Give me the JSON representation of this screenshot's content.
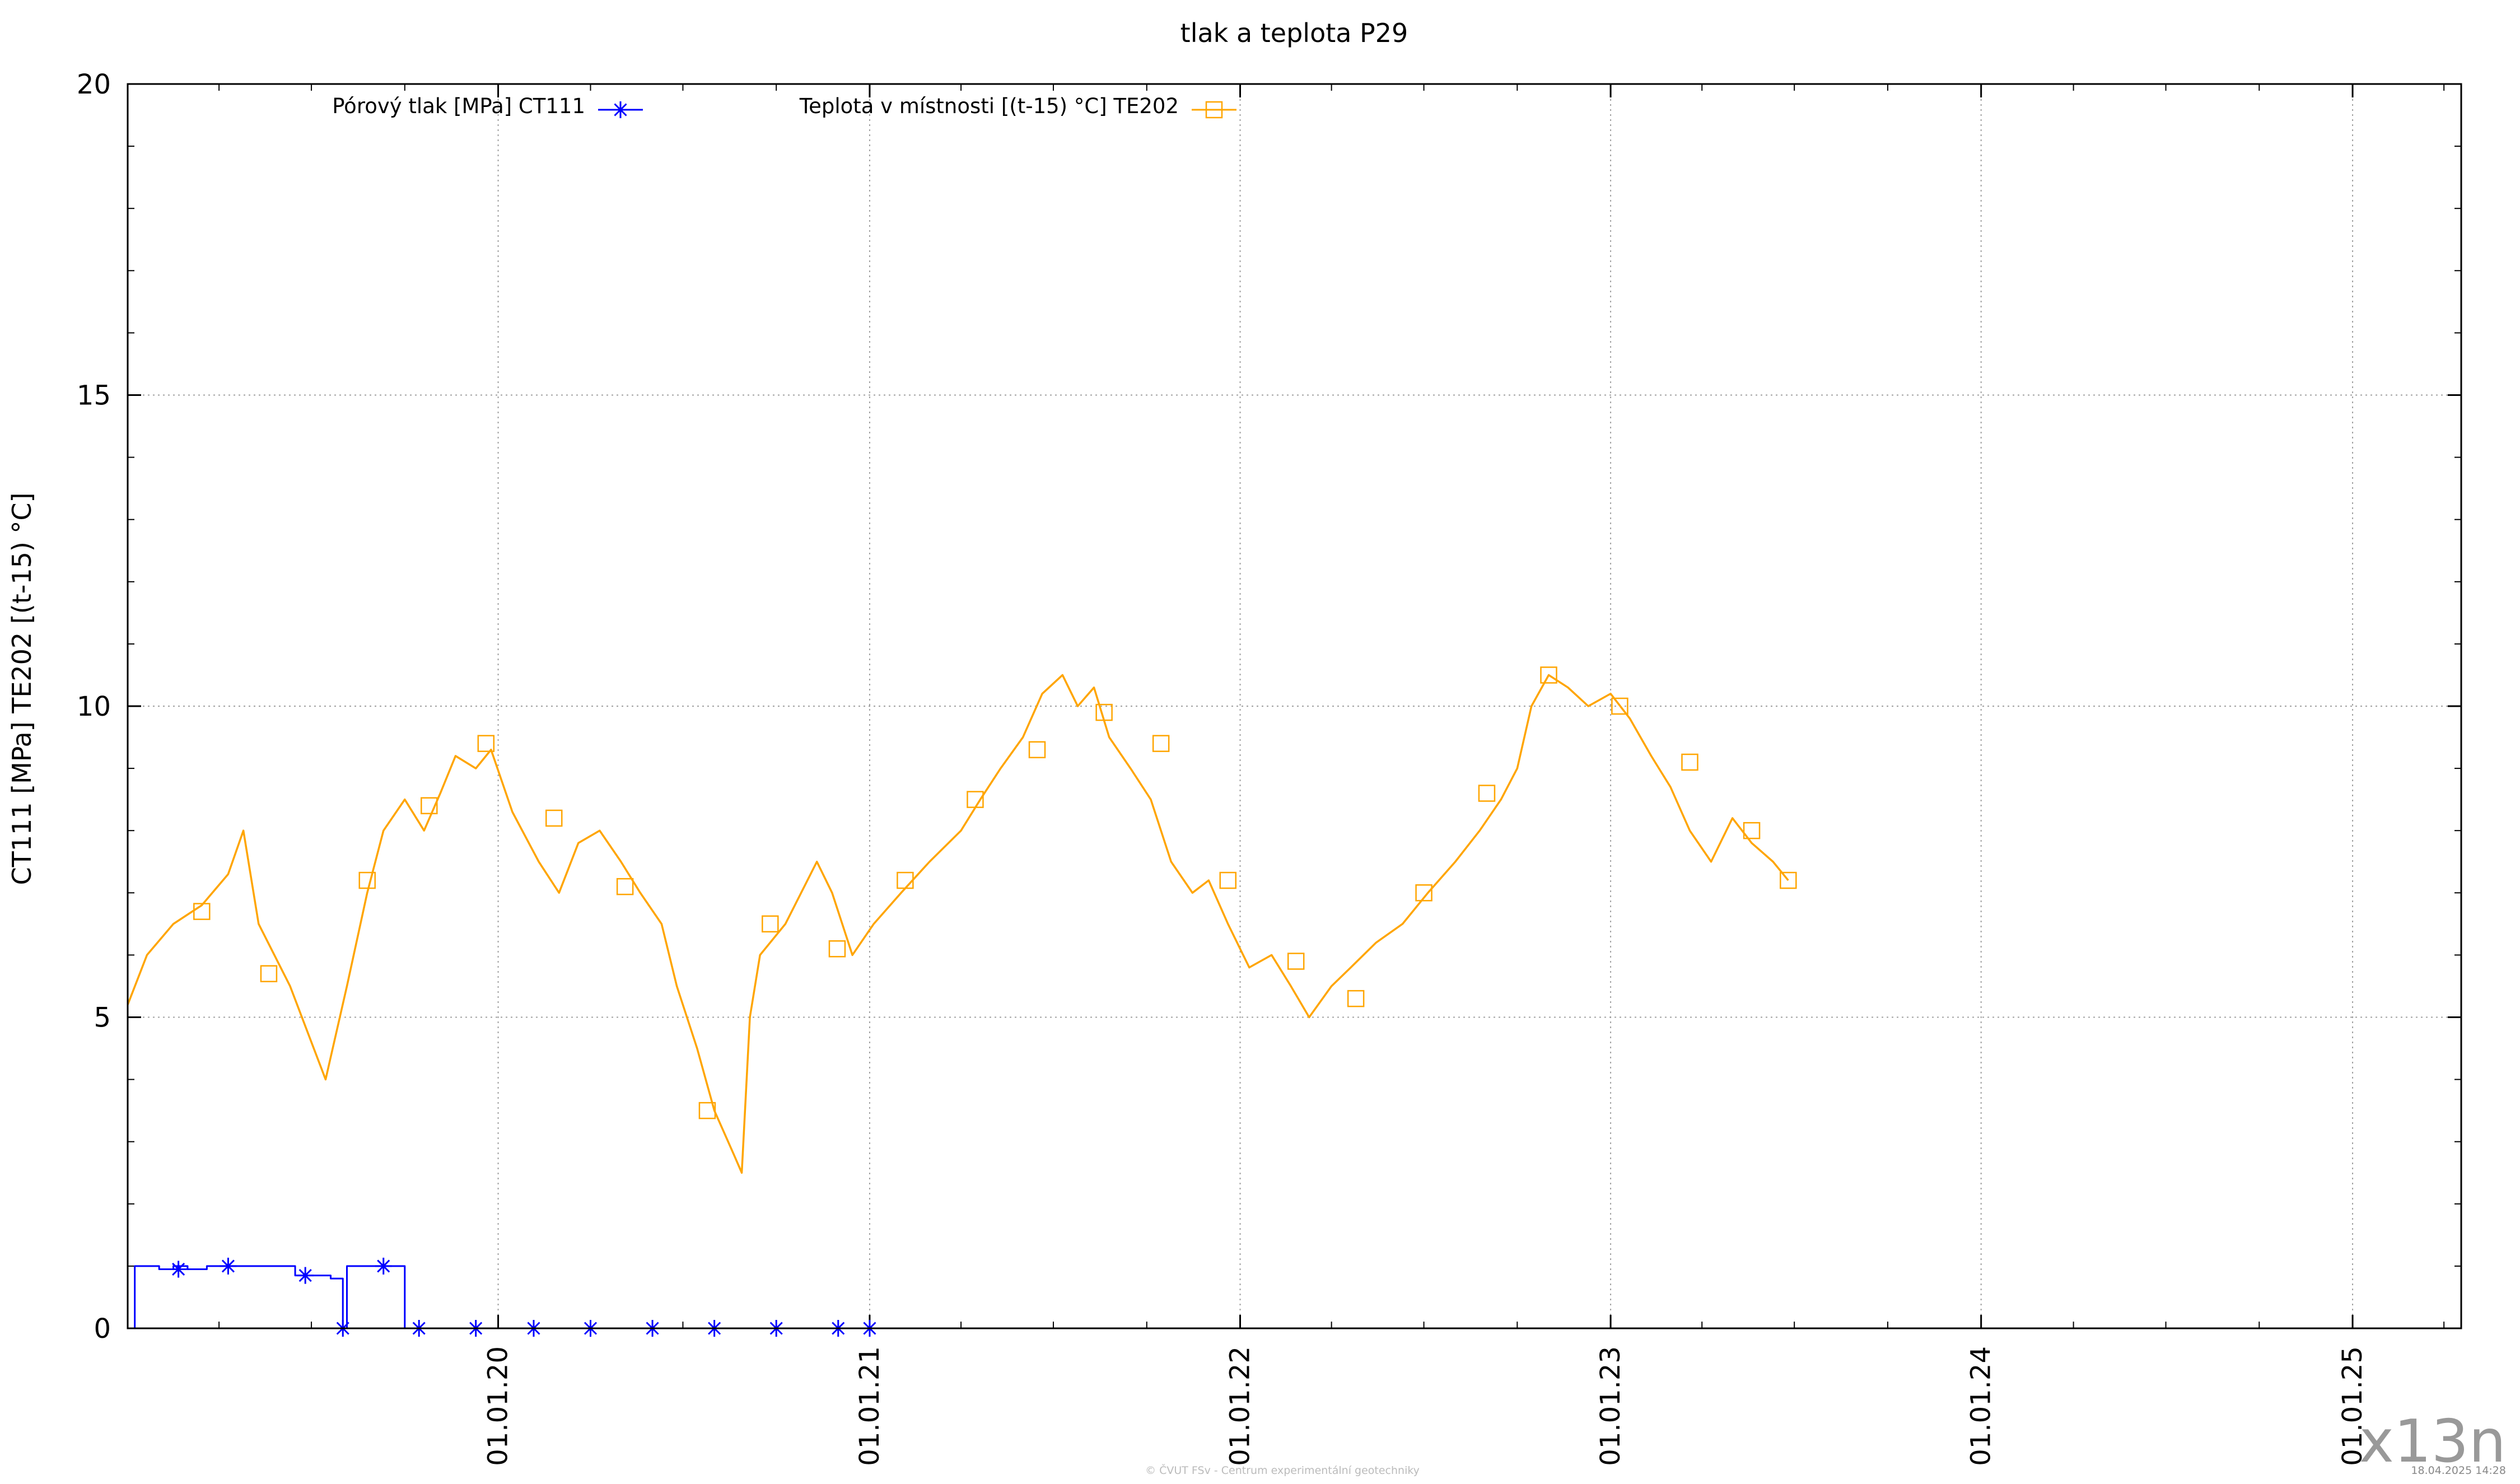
{
  "chart_data": {
    "type": "line",
    "title": "tlak a teplota P29",
    "ylabel": "CT111 [MPa] TE202 [(t-15) °C]",
    "xlabel": "",
    "xlim": [
      "2019-01-01",
      "2025-04-18"
    ],
    "ylim": [
      0,
      20
    ],
    "y_ticks": [
      0,
      5,
      10,
      15,
      20
    ],
    "x_ticks": [
      {
        "label": "01.01.20",
        "date": "2020-01-01"
      },
      {
        "label": "01.01.21",
        "date": "2021-01-01"
      },
      {
        "label": "01.01.22",
        "date": "2022-01-01"
      },
      {
        "label": "01.01.23",
        "date": "2023-01-01"
      },
      {
        "label": "01.01.24",
        "date": "2024-01-01"
      },
      {
        "label": "01.01.25",
        "date": "2025-01-01"
      }
    ],
    "grid": true,
    "legend_position": "top",
    "series": [
      {
        "name": "Pórový tlak [MPa] CT111",
        "color": "#0000ff",
        "marker": "star",
        "line": "step",
        "points": [
          [
            "2019-01-05",
            0.0
          ],
          [
            "2019-01-08",
            1.0
          ],
          [
            "2019-02-01",
            0.95
          ],
          [
            "2019-02-15",
            1.0
          ],
          [
            "2019-03-01",
            0.95
          ],
          [
            "2019-03-20",
            1.0
          ],
          [
            "2019-05-01",
            1.0
          ],
          [
            "2019-06-15",
            0.85
          ],
          [
            "2019-07-20",
            0.8
          ],
          [
            "2019-08-01",
            0.0
          ],
          [
            "2019-08-05",
            1.0
          ],
          [
            "2019-09-20",
            1.0
          ],
          [
            "2019-10-01",
            0.0
          ],
          [
            "2019-10-15",
            0.0
          ],
          [
            "2019-12-01",
            0.0
          ],
          [
            "2020-02-01",
            0.0
          ],
          [
            "2020-04-01",
            0.0
          ],
          [
            "2020-06-01",
            0.0
          ],
          [
            "2020-08-01",
            0.0
          ],
          [
            "2020-10-01",
            0.0
          ],
          [
            "2020-12-31",
            0.0
          ]
        ],
        "marker_points": [
          [
            "2019-02-20",
            0.95
          ],
          [
            "2019-04-10",
            1.0
          ],
          [
            "2019-06-25",
            0.85
          ],
          [
            "2019-08-01",
            0.0
          ],
          [
            "2019-09-10",
            1.0
          ],
          [
            "2019-10-15",
            0.0
          ],
          [
            "2019-12-10",
            0.0
          ],
          [
            "2020-02-05",
            0.0
          ],
          [
            "2020-04-01",
            0.0
          ],
          [
            "2020-06-01",
            0.0
          ],
          [
            "2020-08-01",
            0.0
          ],
          [
            "2020-10-01",
            0.0
          ],
          [
            "2020-12-01",
            0.0
          ],
          [
            "2021-01-01",
            0.0
          ]
        ]
      },
      {
        "name": "Teplota v místnosti [(t-15) °C] TE202",
        "color": "#ffa500",
        "marker": "square",
        "line": "line",
        "points": [
          [
            "2019-01-01",
            5.2
          ],
          [
            "2019-01-20",
            6.0
          ],
          [
            "2019-02-15",
            6.5
          ],
          [
            "2019-03-15",
            6.8
          ],
          [
            "2019-04-10",
            7.3
          ],
          [
            "2019-04-25",
            8.0
          ],
          [
            "2019-05-10",
            6.5
          ],
          [
            "2019-06-10",
            5.5
          ],
          [
            "2019-07-01",
            4.6
          ],
          [
            "2019-07-15",
            4.0
          ],
          [
            "2019-08-05",
            5.5
          ],
          [
            "2019-08-25",
            7.0
          ],
          [
            "2019-09-10",
            8.0
          ],
          [
            "2019-10-01",
            8.5
          ],
          [
            "2019-10-20",
            8.0
          ],
          [
            "2019-11-05",
            8.6
          ],
          [
            "2019-11-20",
            9.2
          ],
          [
            "2019-12-10",
            9.0
          ],
          [
            "2019-12-25",
            9.3
          ],
          [
            "2020-01-15",
            8.3
          ],
          [
            "2020-02-10",
            7.5
          ],
          [
            "2020-03-01",
            7.0
          ],
          [
            "2020-03-20",
            7.8
          ],
          [
            "2020-04-10",
            8.0
          ],
          [
            "2020-05-01",
            7.5
          ],
          [
            "2020-05-20",
            7.0
          ],
          [
            "2020-06-10",
            6.5
          ],
          [
            "2020-06-25",
            5.5
          ],
          [
            "2020-07-15",
            4.5
          ],
          [
            "2020-08-01",
            3.5
          ],
          [
            "2020-08-20",
            2.8
          ],
          [
            "2020-08-28",
            2.5
          ],
          [
            "2020-09-05",
            5.0
          ],
          [
            "2020-09-15",
            6.0
          ],
          [
            "2020-10-10",
            6.5
          ],
          [
            "2020-11-10",
            7.5
          ],
          [
            "2020-11-25",
            7.0
          ],
          [
            "2020-12-15",
            6.0
          ],
          [
            "2021-01-05",
            6.5
          ],
          [
            "2021-02-01",
            7.0
          ],
          [
            "2021-03-01",
            7.5
          ],
          [
            "2021-04-01",
            8.0
          ],
          [
            "2021-04-20",
            8.5
          ],
          [
            "2021-05-10",
            9.0
          ],
          [
            "2021-06-01",
            9.5
          ],
          [
            "2021-06-20",
            10.2
          ],
          [
            "2021-07-10",
            10.5
          ],
          [
            "2021-07-25",
            10.0
          ],
          [
            "2021-08-10",
            10.3
          ],
          [
            "2021-08-25",
            9.5
          ],
          [
            "2021-09-15",
            9.0
          ],
          [
            "2021-10-05",
            8.5
          ],
          [
            "2021-10-25",
            7.5
          ],
          [
            "2021-11-15",
            7.0
          ],
          [
            "2021-12-01",
            7.2
          ],
          [
            "2021-12-20",
            6.5
          ],
          [
            "2022-01-10",
            5.8
          ],
          [
            "2022-02-01",
            6.0
          ],
          [
            "2022-02-20",
            5.5
          ],
          [
            "2022-03-10",
            5.0
          ],
          [
            "2022-04-01",
            5.5
          ],
          [
            "2022-04-20",
            5.8
          ],
          [
            "2022-05-15",
            6.2
          ],
          [
            "2022-06-10",
            6.5
          ],
          [
            "2022-07-05",
            7.0
          ],
          [
            "2022-08-01",
            7.5
          ],
          [
            "2022-08-25",
            8.0
          ],
          [
            "2022-09-15",
            8.5
          ],
          [
            "2022-10-01",
            9.0
          ],
          [
            "2022-10-15",
            10.0
          ],
          [
            "2022-11-01",
            10.5
          ],
          [
            "2022-11-20",
            10.3
          ],
          [
            "2022-12-10",
            10.0
          ],
          [
            "2023-01-01",
            10.2
          ],
          [
            "2023-01-20",
            9.8
          ],
          [
            "2023-02-10",
            9.2
          ],
          [
            "2023-03-01",
            8.7
          ],
          [
            "2023-03-20",
            8.0
          ],
          [
            "2023-04-10",
            7.5
          ],
          [
            "2023-05-01",
            8.2
          ],
          [
            "2023-05-20",
            7.8
          ],
          [
            "2023-06-10",
            7.5
          ],
          [
            "2023-06-25",
            7.2
          ]
        ],
        "marker_points": [
          [
            "2019-03-15",
            6.7
          ],
          [
            "2019-05-20",
            5.7
          ],
          [
            "2019-08-25",
            7.2
          ],
          [
            "2019-10-25",
            8.4
          ],
          [
            "2019-12-20",
            9.4
          ],
          [
            "2020-02-25",
            8.2
          ],
          [
            "2020-05-05",
            7.1
          ],
          [
            "2020-07-25",
            3.5
          ],
          [
            "2020-09-25",
            6.5
          ],
          [
            "2020-11-30",
            6.1
          ],
          [
            "2021-02-05",
            7.2
          ],
          [
            "2021-04-15",
            8.5
          ],
          [
            "2021-06-15",
            9.3
          ],
          [
            "2021-08-20",
            9.9
          ],
          [
            "2021-10-15",
            9.4
          ],
          [
            "2021-12-20",
            7.2
          ],
          [
            "2022-02-25",
            5.9
          ],
          [
            "2022-04-25",
            5.3
          ],
          [
            "2022-07-01",
            7.0
          ],
          [
            "2022-09-01",
            8.6
          ],
          [
            "2022-11-01",
            10.5
          ],
          [
            "2023-01-10",
            10.0
          ],
          [
            "2023-03-20",
            9.1
          ],
          [
            "2023-05-20",
            8.0
          ],
          [
            "2023-06-25",
            7.2
          ]
        ]
      }
    ]
  },
  "footer": {
    "copyright": "© ČVUT FSv - Centrum experimentální geotechniky",
    "date": "18.04.2025 14:28"
  },
  "watermark": "x13n"
}
